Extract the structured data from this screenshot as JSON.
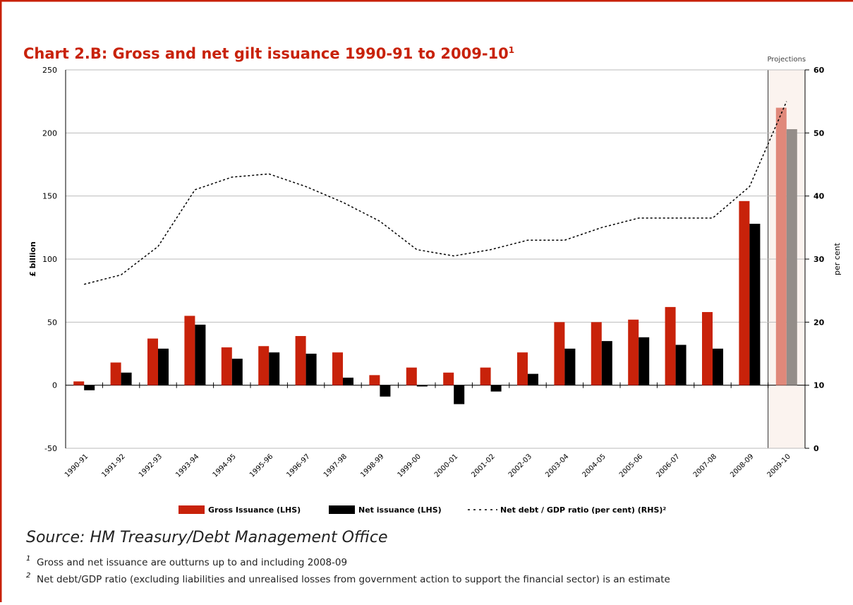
{
  "chart_data": {
    "type": "bar",
    "title": "Chart 2.B: Gross and net gilt issuance 1990-91 to 2009-10",
    "title_mark": "1",
    "ylabel": "£ billion",
    "y2label": "per cent",
    "categories": [
      "1990-91",
      "1991-92",
      "1992-93",
      "1993-94",
      "1994-95",
      "1995-96",
      "1996-97",
      "1997-98",
      "1998-99",
      "1999-00",
      "2000-01",
      "2001-02",
      "2002-03",
      "2003-04",
      "2004-05",
      "2005-06",
      "2006-07",
      "2007-08",
      "2008-09",
      "2009-10"
    ],
    "projection": {
      "label": "Projections",
      "start": "2009-10"
    },
    "series": [
      {
        "name": "Gross Issuance (LHS)",
        "type": "bar",
        "color": "#c8220a",
        "projected_color": "#e0887a",
        "values": [
          3,
          18,
          37,
          55,
          30,
          31,
          39,
          26,
          8,
          14,
          10,
          14,
          26,
          50,
          50,
          52,
          62,
          58,
          146,
          220
        ]
      },
      {
        "name": "Net issuance (LHS)",
        "type": "bar",
        "color": "#000000",
        "projected_color": "#948d89",
        "values": [
          -4,
          10,
          29,
          48,
          21,
          26,
          25,
          6,
          -9,
          -1,
          -15,
          -5,
          9,
          29,
          35,
          38,
          32,
          29,
          128,
          203
        ]
      },
      {
        "name": "Net debt / GDP ratio (per cent) (RHS)²",
        "type": "line",
        "axis": "y2",
        "color": "#000000",
        "projected_color": "#7a7a7a",
        "values": [
          26,
          27.5,
          32,
          41,
          43,
          43.5,
          41.5,
          39,
          36,
          31.5,
          30.5,
          31.5,
          33,
          33,
          35,
          36.5,
          36.5,
          36.5,
          41.5,
          55
        ]
      }
    ],
    "ylim": [
      -50,
      250
    ],
    "yticks": [
      -50,
      0,
      50,
      100,
      150,
      200,
      250
    ],
    "y2lim": [
      0,
      60
    ],
    "y2ticks": [
      0,
      10,
      20,
      30,
      40,
      50,
      60
    ],
    "grid": true,
    "source": "Source: HM Treasury/Debt Management Office",
    "footnotes": [
      {
        "mark": "1",
        "text": "Gross and net issuance are outturns up to and including 2008-09"
      },
      {
        "mark": "2",
        "text": "Net debt/GDP ratio (excluding liabilities and unrealised losses from government action to support the financial sector) is an estimate"
      }
    ]
  }
}
